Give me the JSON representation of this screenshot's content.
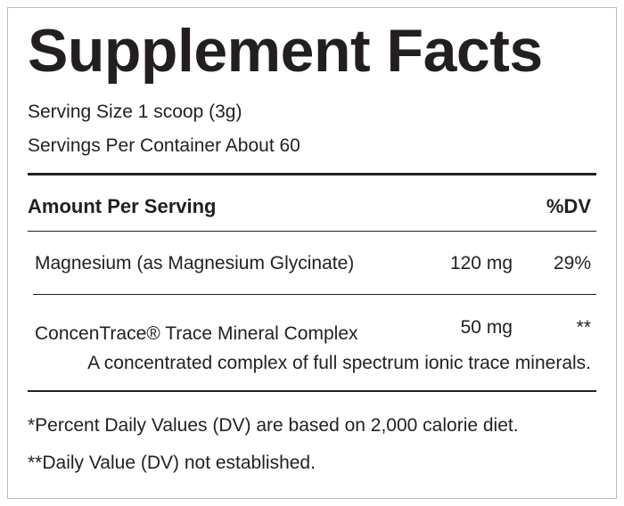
{
  "header": {
    "title": "Supplement Facts",
    "serving_size": "Serving Size 1 scoop (3g)",
    "servings_per_container": "Servings Per Container About 60"
  },
  "table": {
    "header": [
      "Amount Per Serving",
      "%DV"
    ],
    "rows": [
      {
        "name": "Magnesium (as Magnesium Glycinate)",
        "amount": "120 mg",
        "dv": "29%"
      },
      {
        "name": "ConcenTrace® Trace Mineral Complex",
        "amount": "50 mg",
        "dv": "**",
        "description": "A concentrated complex of full spectrum ionic trace minerals."
      }
    ]
  },
  "footnotes": [
    "*Percent Daily Values (DV) are based on 2,000 calorie diet.",
    "**Daily Value (DV) not established."
  ]
}
